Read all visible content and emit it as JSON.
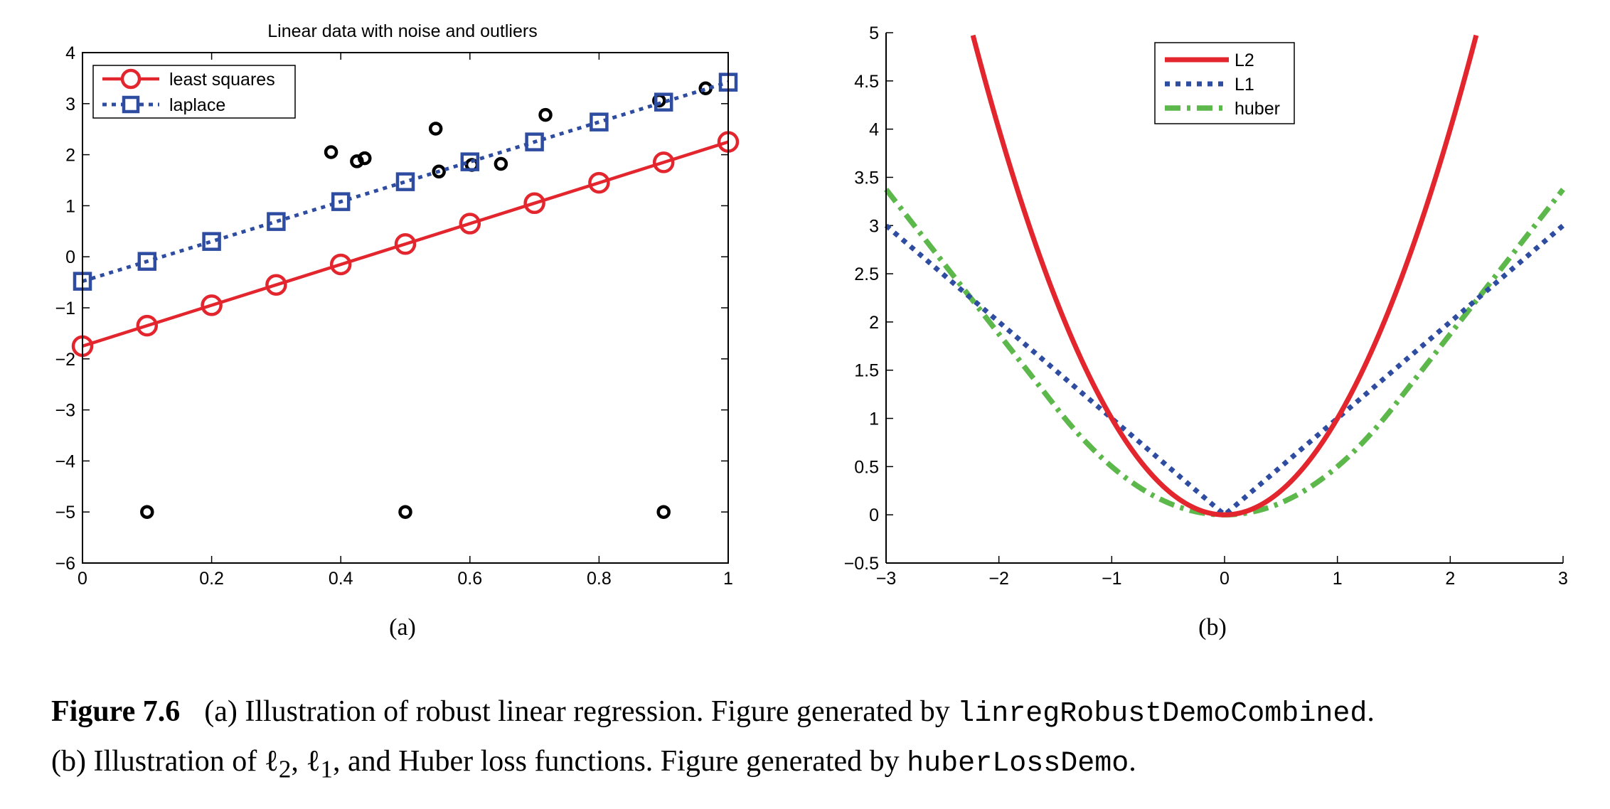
{
  "chart_data": [
    {
      "type": "scatter",
      "title": "Linear data with noise and outliers",
      "subplot_label": "(a)",
      "xlim": [
        0,
        1
      ],
      "ylim": [
        -6,
        4
      ],
      "xticks": [
        "0",
        "0.2",
        "0.4",
        "0.6",
        "0.8",
        "1"
      ],
      "yticks": [
        "−6",
        "−5",
        "−4",
        "−3",
        "−2",
        "−1",
        "0",
        "1",
        "2",
        "3",
        "4"
      ],
      "grid": false,
      "legend_position": "top-left",
      "points": {
        "x": [
          0.1,
          0.5,
          0.9,
          0.385,
          0.425,
          0.437,
          0.547,
          0.552,
          0.603,
          0.648,
          0.717,
          0.893,
          0.965
        ],
        "y": [
          -5,
          -5,
          -5,
          2.05,
          1.87,
          1.93,
          2.51,
          1.67,
          1.8,
          1.82,
          2.78,
          3.06,
          3.3
        ],
        "color": "#000000"
      },
      "series": [
        {
          "name": "least squares",
          "color": "#e3262e",
          "style": "solid-circle",
          "x": [
            0,
            0.1,
            0.2,
            0.3,
            0.4,
            0.5,
            0.6,
            0.7,
            0.8,
            0.9,
            1.0
          ],
          "y": [
            -1.75,
            -1.35,
            -0.95,
            -0.55,
            -0.15,
            0.25,
            0.65,
            1.05,
            1.45,
            1.85,
            2.25
          ]
        },
        {
          "name": "laplace",
          "color": "#2f4da0",
          "style": "dotted-square",
          "x": [
            0,
            0.1,
            0.2,
            0.3,
            0.4,
            0.5,
            0.6,
            0.7,
            0.8,
            0.9,
            1.0
          ],
          "y": [
            -0.48,
            -0.09,
            0.3,
            0.69,
            1.08,
            1.47,
            1.86,
            2.25,
            2.64,
            3.03,
            3.42
          ]
        }
      ]
    },
    {
      "type": "line",
      "subplot_label": "(b)",
      "xlim": [
        -3,
        3
      ],
      "ylim": [
        -0.5,
        5
      ],
      "xticks": [
        "−3",
        "−2",
        "−1",
        "0",
        "1",
        "2",
        "3"
      ],
      "yticks": [
        "−0.5",
        "0",
        "0.5",
        "1",
        "1.5",
        "2",
        "2.5",
        "3",
        "3.5",
        "4",
        "4.5",
        "5"
      ],
      "grid": false,
      "legend_position": "top-center",
      "huber_delta": 1.5,
      "series": [
        {
          "name": "L2",
          "color": "#e3262e",
          "style": "solid",
          "function": "x^2"
        },
        {
          "name": "L1",
          "color": "#2f4da0",
          "style": "dotted",
          "function": "|x|"
        },
        {
          "name": "huber",
          "color": "#5cb84a",
          "style": "dashdot",
          "function": "huber"
        }
      ]
    }
  ],
  "caption": {
    "label": "Figure 7.6",
    "line1_pre": "(a) Illustration of robust linear regression. Figure generated by ",
    "line1_code": "linregRobustDemoCombined",
    "line1_post": ".",
    "line2_pre": "(b) Illustration of ℓ",
    "line2_sub1": "2",
    "line2_mid1": ", ℓ",
    "line2_sub2": "1",
    "line2_mid2": ", and Huber loss functions. Figure generated by ",
    "line2_code": "huberLossDemo",
    "line2_post": "."
  }
}
